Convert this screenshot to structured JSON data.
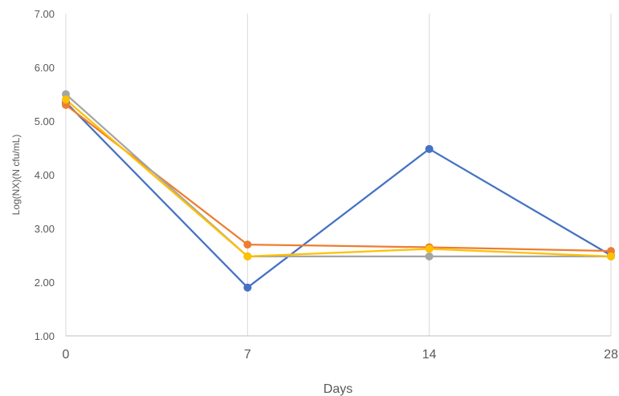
{
  "chart_data": {
    "type": "line",
    "title": "",
    "xlabel": "Days",
    "ylabel": "Log(NX)(N cfu/mL)",
    "categories": [
      "0",
      "7",
      "14",
      "28"
    ],
    "ylim": [
      1.0,
      7.0
    ],
    "ytick_labels": [
      "1.00",
      "2.00",
      "3.00",
      "4.00",
      "5.00",
      "6.00",
      "7.00"
    ],
    "grid": "vertical",
    "legend": "none",
    "series": [
      {
        "color": "#4472C4",
        "values": [
          5.35,
          1.9,
          4.48,
          2.5
        ]
      },
      {
        "color": "#ED7D31",
        "values": [
          5.3,
          2.7,
          2.65,
          2.58
        ]
      },
      {
        "color": "#A5A5A5",
        "values": [
          5.5,
          2.48,
          2.48,
          2.48
        ]
      },
      {
        "color": "#FFC000",
        "values": [
          5.4,
          2.48,
          2.62,
          2.48
        ]
      }
    ]
  }
}
